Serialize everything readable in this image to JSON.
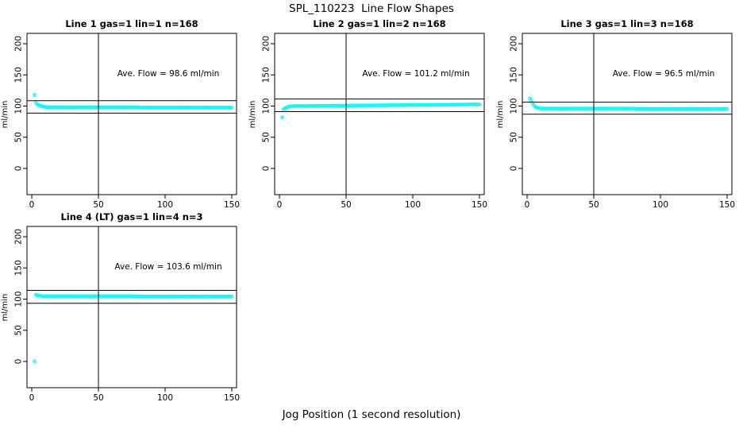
{
  "figure": {
    "title": "SPL_110223  Line Flow Shapes",
    "xlabel": "Jog Position (1 second resolution)",
    "background": "#ffffff",
    "line_color": "#000000",
    "point_color": "#00FFFF"
  },
  "chart_data": [
    {
      "type": "scatter",
      "title": "Line 1 gas=1 lin=1 n=168",
      "ylabel": "ml/min",
      "annotation": "Ave. Flow =  98.6  ml/min",
      "avg_flow_ml_min": 98.6,
      "n_points": 168,
      "x_ticks": [
        0,
        50,
        100,
        150
      ],
      "y_ticks": [
        0,
        50,
        100,
        150,
        200
      ],
      "xlim": [
        -6,
        156
      ],
      "ylim": [
        -42,
        217
      ],
      "ref_vline_x": 50,
      "ref_hlines": [
        108.5,
        88.7
      ],
      "marker": "open-circle",
      "x_start": 2,
      "x_step": 1,
      "y": [
        118,
        105.5,
        103.4,
        101.9,
        100.8,
        100.0,
        99.4,
        99.0,
        98.7,
        98.2,
        97.9,
        98.3,
        98.0,
        98.1,
        98.2,
        97.9,
        98.3,
        98.0,
        98.1,
        98.2,
        97.9,
        98.3,
        98.0,
        98.1,
        98.2,
        97.9,
        98.3,
        98.0,
        98.1,
        98.2,
        97.9,
        98.3,
        98.0,
        98.1,
        98.2,
        97.9,
        98.3,
        98.0,
        98.1,
        98.2,
        97.9,
        98.3,
        98.0,
        98.1,
        98.2,
        97.9,
        98.3,
        98.0,
        98.1,
        98.2,
        97.9,
        98.3,
        98.0,
        98.1,
        98.2,
        97.9,
        98.3,
        98.0,
        98.1,
        98.2,
        97.9,
        98.3,
        98.0,
        98.1,
        98.2,
        97.9,
        98.3,
        98.0,
        98.1,
        98.2,
        97.9,
        98.3,
        98.0,
        98.1,
        98.2,
        97.9,
        98.3,
        98.0,
        98.1,
        97.8,
        97.5,
        97.9,
        97.6,
        97.7,
        97.8,
        97.5,
        97.9,
        97.6,
        97.7,
        97.8,
        97.5,
        97.9,
        97.6,
        97.7,
        97.8,
        97.5,
        97.9,
        97.6,
        97.7,
        97.8,
        97.5,
        97.9,
        97.6,
        97.7,
        97.8,
        97.5,
        97.9,
        97.6,
        97.7,
        97.8,
        97.5,
        97.9,
        97.6,
        97.7,
        97.8,
        97.5,
        97.9,
        97.6,
        97.7,
        97.8,
        97.5,
        97.9,
        97.6,
        97.7,
        97.8,
        97.5,
        97.9,
        97.6,
        97.7,
        97.8,
        97.5,
        97.9,
        97.6,
        97.7,
        97.8,
        97.5,
        97.9,
        97.6,
        97.7,
        97.8,
        97.5,
        97.9,
        97.6,
        97.7,
        97.8,
        97.5,
        97.9,
        97.6,
        97.7
      ]
    },
    {
      "type": "scatter",
      "title": "Line 2 gas=1 lin=2 n=168",
      "ylabel": "ml/min",
      "annotation": "Ave. Flow =  101.2  ml/min",
      "avg_flow_ml_min": 101.2,
      "n_points": 168,
      "x_ticks": [
        0,
        50,
        100,
        150
      ],
      "y_ticks": [
        0,
        50,
        100,
        150,
        200
      ],
      "xlim": [
        -6,
        156
      ],
      "ylim": [
        -42,
        217
      ],
      "ref_vline_x": 50,
      "ref_hlines": [
        111.3,
        91.1
      ],
      "marker": "open-circle",
      "x_start": 2,
      "x_step": 1,
      "y": [
        82,
        94.6,
        96.4,
        97.6,
        98.4,
        99.0,
        99.4,
        99.7,
        99.9,
        100.1,
        99.9,
        100.2,
        100.0,
        100.1,
        99.9,
        100.2,
        100.0,
        100.1,
        100.0,
        100.3,
        100.1,
        100.4,
        100.2,
        100.3,
        100.1,
        100.4,
        100.2,
        100.3,
        100.2,
        100.5,
        100.3,
        100.6,
        100.4,
        100.5,
        100.3,
        100.6,
        100.4,
        100.5,
        100.4,
        100.7,
        100.5,
        100.8,
        100.6,
        100.7,
        100.5,
        100.8,
        100.6,
        100.7,
        100.6,
        100.9,
        100.7,
        101.0,
        100.8,
        100.9,
        100.7,
        101.0,
        100.8,
        100.9,
        100.8,
        101.1,
        100.9,
        101.2,
        101.0,
        101.1,
        100.9,
        101.2,
        101.0,
        101.1,
        101.0,
        101.3,
        101.1,
        101.4,
        101.2,
        101.3,
        101.1,
        101.4,
        101.2,
        101.3,
        101.2,
        101.5,
        101.3,
        101.6,
        101.4,
        101.5,
        101.3,
        101.6,
        101.4,
        101.5,
        101.4,
        101.7,
        101.5,
        101.8,
        101.6,
        101.7,
        101.5,
        101.8,
        101.6,
        101.7,
        101.6,
        101.9,
        101.7,
        102.0,
        101.8,
        101.9,
        101.7,
        102.0,
        101.8,
        101.9,
        101.8,
        102.1,
        101.9,
        102.2,
        102.0,
        102.1,
        101.9,
        102.2,
        102.0,
        102.1,
        102.0,
        102.3,
        102.1,
        102.4,
        102.2,
        102.3,
        102.1,
        102.4,
        102.2,
        102.3,
        102.2,
        102.5,
        102.3,
        102.6,
        102.4,
        102.5,
        102.3,
        102.6,
        102.4,
        102.5,
        102.4,
        102.7,
        102.5,
        102.8,
        102.6,
        102.7,
        102.5,
        102.8,
        102.6,
        102.7,
        102.6
      ]
    },
    {
      "type": "scatter",
      "title": "Line 3 gas=1 lin=3 n=168",
      "ylabel": "ml/min",
      "annotation": "Ave. Flow =  96.5  ml/min",
      "avg_flow_ml_min": 96.5,
      "n_points": 168,
      "x_ticks": [
        0,
        50,
        100,
        150
      ],
      "y_ticks": [
        0,
        50,
        100,
        150,
        200
      ],
      "xlim": [
        -6,
        156
      ],
      "ylim": [
        -42,
        217
      ],
      "ref_vline_x": 50,
      "ref_hlines": [
        106.2,
        86.9
      ],
      "marker": "open-circle",
      "x_start": 2,
      "x_step": 1,
      "y": [
        112,
        109.3,
        104.8,
        101.6,
        99.4,
        98.0,
        97.1,
        96.6,
        96.3,
        96.1,
        95.8,
        96.2,
        95.9,
        96.0,
        96.1,
        95.8,
        96.2,
        95.9,
        96.0,
        96.1,
        95.8,
        96.2,
        95.9,
        96.0,
        96.1,
        95.8,
        96.2,
        95.9,
        96.0,
        96.1,
        95.8,
        96.2,
        95.9,
        96.0,
        96.1,
        95.8,
        96.2,
        95.9,
        96.0,
        96.1,
        95.8,
        96.2,
        95.9,
        96.0,
        96.1,
        95.8,
        96.2,
        95.9,
        96.0,
        96.1,
        95.8,
        96.2,
        95.9,
        96.0,
        96.1,
        95.8,
        96.2,
        95.9,
        96.0,
        96.1,
        95.8,
        96.2,
        95.9,
        96.0,
        96.1,
        95.8,
        96.2,
        95.9,
        96.0,
        96.1,
        95.8,
        96.2,
        95.9,
        96.0,
        96.1,
        95.8,
        96.2,
        95.9,
        96.0,
        95.7,
        95.4,
        95.8,
        95.5,
        95.6,
        95.7,
        95.4,
        95.8,
        95.5,
        95.6,
        95.7,
        95.4,
        95.8,
        95.5,
        95.6,
        95.7,
        95.4,
        95.8,
        95.5,
        95.6,
        95.7,
        95.4,
        95.8,
        95.5,
        95.6,
        95.7,
        95.4,
        95.8,
        95.5,
        95.6,
        95.7,
        95.4,
        95.8,
        95.5,
        95.6,
        95.7,
        95.4,
        95.8,
        95.5,
        95.6,
        95.7,
        95.4,
        95.8,
        95.5,
        95.6,
        95.7,
        95.4,
        95.8,
        95.5,
        95.6,
        95.7,
        95.4,
        95.8,
        95.5,
        95.6,
        95.7,
        95.4,
        95.8,
        95.5,
        95.6,
        95.7,
        95.4,
        95.8,
        95.5,
        95.6,
        95.7,
        95.4,
        95.8,
        95.5,
        95.6
      ]
    },
    {
      "type": "scatter",
      "title": "Line 4 (LT) gas=1 lin=4 n=3",
      "ylabel": "ml/min",
      "annotation": "Ave. Flow =  103.6  ml/min",
      "avg_flow_ml_min": 103.6,
      "n_points": 3,
      "x_ticks": [
        0,
        50,
        100,
        150
      ],
      "y_ticks": [
        0,
        50,
        100,
        150,
        200
      ],
      "xlim": [
        -6,
        156
      ],
      "ylim": [
        -42,
        217
      ],
      "ref_vline_x": 50,
      "ref_hlines": [
        114.0,
        93.2
      ],
      "marker": "open-circle",
      "x_start": 2,
      "x_step": 1,
      "y": [
        0.5,
        107.0,
        106.3,
        105.8,
        105.4,
        105.1,
        104.9,
        104.8,
        104.7,
        104.8,
        104.5,
        104.9,
        104.6,
        104.7,
        104.8,
        104.5,
        104.9,
        104.6,
        104.7,
        104.8,
        104.5,
        104.9,
        104.6,
        104.7,
        104.8,
        104.5,
        104.9,
        104.6,
        104.7,
        104.8,
        104.5,
        104.9,
        104.6,
        104.7,
        104.8,
        104.5,
        104.9,
        104.6,
        104.7,
        104.8,
        104.5,
        104.9,
        104.6,
        104.7,
        104.8,
        104.5,
        104.9,
        104.6,
        104.7,
        104.8,
        104.5,
        104.9,
        104.6,
        104.7,
        104.8,
        104.5,
        104.9,
        104.6,
        104.7,
        104.8,
        104.5,
        104.9,
        104.6,
        104.7,
        104.8,
        104.5,
        104.9,
        104.6,
        104.7,
        104.8,
        104.5,
        104.9,
        104.6,
        104.7,
        104.8,
        104.5,
        104.9,
        104.6,
        104.7,
        104.4,
        104.1,
        104.5,
        104.2,
        104.3,
        104.4,
        104.1,
        104.5,
        104.2,
        104.3,
        104.4,
        104.1,
        104.5,
        104.2,
        104.3,
        104.4,
        104.1,
        104.5,
        104.2,
        104.3,
        104.4,
        104.1,
        104.5,
        104.2,
        104.3,
        104.4,
        104.1,
        104.5,
        104.2,
        104.3,
        104.4,
        104.1,
        104.5,
        104.2,
        104.3,
        104.4,
        104.1,
        104.5,
        104.2,
        104.3,
        104.4,
        104.1,
        104.5,
        104.2,
        104.3,
        104.4,
        104.1,
        104.5,
        104.2,
        104.3,
        104.4,
        104.1,
        104.5,
        104.2,
        104.3,
        104.4,
        104.1,
        104.5,
        104.2,
        104.3,
        104.4,
        104.1,
        104.5,
        104.2,
        104.3,
        104.4,
        104.1,
        104.5,
        104.2,
        104.3
      ]
    }
  ]
}
